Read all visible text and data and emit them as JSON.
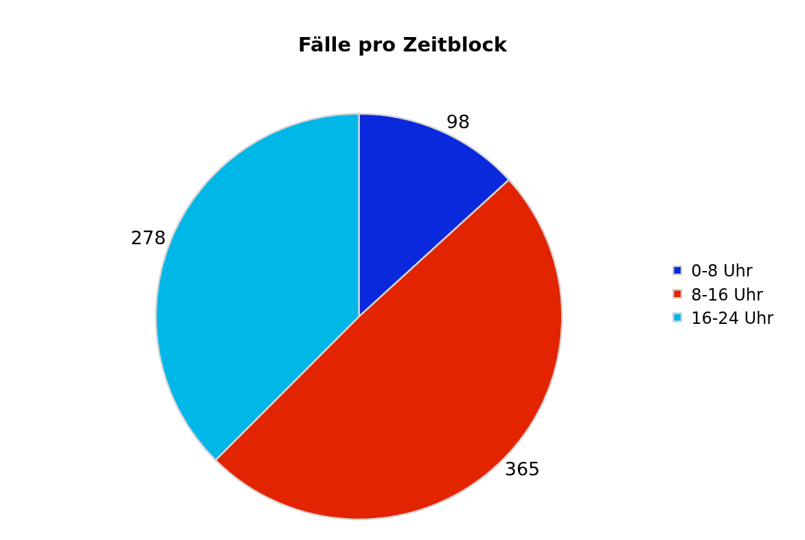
{
  "chart_data": {
    "type": "pie",
    "title": "Fälle pro Zeitblock",
    "categories": [
      "0-8 Uhr",
      "8-16 Uhr",
      "16-24 Uhr"
    ],
    "values": [
      98,
      365,
      278
    ],
    "colors": [
      "#0a28dc",
      "#e32400",
      "#00b8e8"
    ],
    "data_labels": true,
    "legend": "right"
  }
}
